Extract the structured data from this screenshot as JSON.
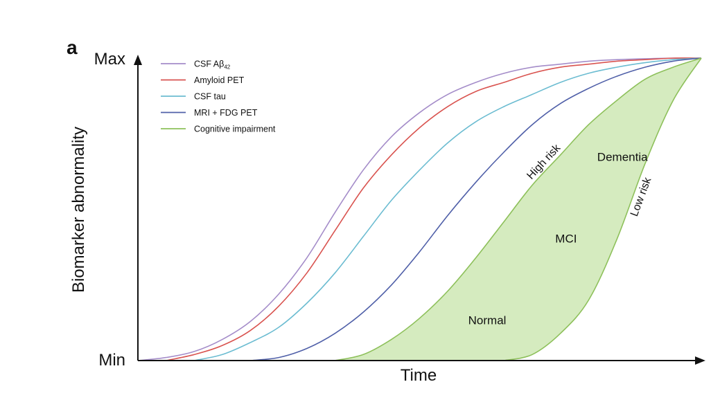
{
  "panel_label": "a",
  "chart_data": {
    "type": "line",
    "xlabel": "Time",
    "ylabel": "Biomarker abnormality",
    "y_min_label": "Min",
    "y_max_label": "Max",
    "x": [
      0,
      5,
      10,
      15,
      20,
      25,
      30,
      35,
      40,
      45,
      50,
      55,
      60,
      65,
      70,
      75,
      80,
      85,
      90,
      95,
      100
    ],
    "series": [
      {
        "name": "CSF Aβ42",
        "color": "#a48cc9",
        "values": [
          0,
          1,
          3,
          7,
          13,
          22,
          34,
          49,
          63,
          74,
          82,
          88,
          92,
          95,
          97,
          98,
          99,
          99.5,
          99.8,
          100,
          100
        ]
      },
      {
        "name": "Amyloid PET",
        "color": "#d9534f",
        "values": [
          0,
          0,
          2,
          5,
          10,
          18,
          29,
          43,
          57,
          68,
          77,
          84,
          89,
          92,
          95,
          97,
          98,
          99,
          99.5,
          100,
          100
        ]
      },
      {
        "name": "CSF tau",
        "color": "#6bbcd1",
        "values": [
          0,
          0,
          0,
          2,
          6,
          11,
          19,
          29,
          41,
          53,
          63,
          72,
          79,
          84,
          88,
          92,
          95,
          97,
          98.5,
          99.5,
          100
        ]
      },
      {
        "name": "MRI + FDG PET",
        "color": "#4f5fa8",
        "values": [
          0,
          0,
          0,
          0,
          0,
          1,
          4,
          9,
          16,
          25,
          36,
          48,
          59,
          69,
          78,
          85,
          90,
          94,
          97,
          99,
          100
        ]
      },
      {
        "name": "Cognitive impairment",
        "color": "#8dc05a",
        "values": [
          0,
          0,
          0,
          0,
          0,
          0,
          0,
          0,
          2,
          7,
          14,
          23,
          34,
          46,
          58,
          68,
          78,
          86,
          93,
          97,
          100
        ]
      }
    ],
    "shaded_band": {
      "color": "#d5ebbf",
      "upper_name": "High risk",
      "lower_name": "Low risk",
      "upper": [
        0,
        0,
        0,
        0,
        0,
        0,
        0,
        0,
        2,
        7,
        14,
        23,
        34,
        46,
        58,
        68,
        78,
        86,
        93,
        97,
        100
      ],
      "lower": [
        0,
        0,
        0,
        0,
        0,
        0,
        0,
        0,
        0,
        0,
        0,
        0,
        0,
        0,
        2,
        9,
        20,
        40,
        65,
        86,
        100
      ]
    },
    "annotations": [
      {
        "text": "Normal",
        "x": 62,
        "y": 12
      },
      {
        "text": "MCI",
        "x": 76,
        "y": 39
      },
      {
        "text": "Dementia",
        "x": 86,
        "y": 66
      }
    ],
    "xlim": [
      0,
      100
    ],
    "ylim": [
      0,
      100
    ],
    "grid": false,
    "legend_position": "top-left"
  }
}
